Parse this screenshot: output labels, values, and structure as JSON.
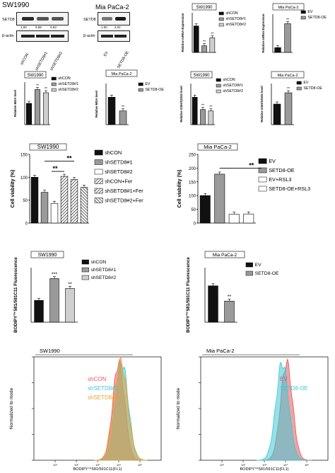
{
  "western": {
    "sw": {
      "title": "SW1990",
      "rows": [
        "SETD8",
        "β-actin"
      ],
      "values": [
        "1.00",
        "0.59",
        "0.63"
      ],
      "lanes": [
        "shCON",
        "shSETD8#1",
        "shSETD8#2"
      ]
    },
    "mia": {
      "title": "Mia PaCa-2",
      "rows": [
        "SETD8",
        "β-actin"
      ],
      "values": [
        "1.00",
        "2.01"
      ],
      "lanes": [
        "EV",
        "SETD8-OE"
      ]
    }
  },
  "colors": {
    "black": "#111111",
    "gray": "#9a9a9a",
    "light": "#cfcfcf",
    "white": "#ffffff",
    "flow_red": "#e8585a",
    "flow_cyan": "#3cc8d6",
    "flow_orange": "#e8a03a"
  },
  "chart_data": [
    {
      "id": "mrna_sw",
      "type": "bar",
      "title": "SW1990",
      "ylabel": "Relative mRNA Expression",
      "categories": [
        "shCON",
        "shSETD8#1",
        "shSETD8#2"
      ],
      "values": [
        1.0,
        0.25,
        0.55
      ],
      "ylim": [
        0,
        1.5
      ],
      "yticks": [],
      "sig": [
        "",
        "**",
        "**"
      ],
      "legend": [
        "shCON",
        "shSETD8#1",
        "shSETD8#2"
      ]
    },
    {
      "id": "mrna_mia",
      "type": "bar",
      "title": "Mia PaCa-2",
      "ylabel": "Relative mRNA Expression",
      "categories": [
        "EV",
        "SETD8-OE"
      ],
      "values": [
        1.0,
        6.0
      ],
      "ylim": [
        0,
        8
      ],
      "yticks": [],
      "sig": [
        "",
        "**"
      ],
      "legend": [
        "EV",
        "SETD8-OE"
      ]
    },
    {
      "id": "mda_sw",
      "type": "bar",
      "title": "SW1990",
      "ylabel": "Relative MDA level",
      "categories": [
        "shCON",
        "shSETD8#1",
        "shSETD8#2"
      ],
      "values": [
        1.0,
        1.65,
        1.5
      ],
      "ylim": [
        0,
        2.0
      ],
      "yticks": [],
      "sig": [
        "",
        "**",
        "**"
      ],
      "legend": [
        "shCON",
        "shSETD8#1",
        "shSETD8#2"
      ]
    },
    {
      "id": "mda_mia",
      "type": "bar",
      "title": "Mia PaCa-2",
      "ylabel": "Relative MDA level",
      "categories": [
        "EV",
        "SETD8-OE"
      ],
      "values": [
        1.0,
        0.5
      ],
      "ylim": [
        0,
        1.5
      ],
      "yticks": [],
      "sig": [
        "",
        "**"
      ],
      "legend": [
        "EV",
        "SETD8-OE"
      ]
    },
    {
      "id": "gsh_sw",
      "type": "bar",
      "title": "SW1990",
      "ylabel": "Relative GSH/GSSG level",
      "categories": [
        "shCON",
        "shSETD8#1",
        "shSETD8#2"
      ],
      "values": [
        1.0,
        0.55,
        0.5
      ],
      "ylim": [
        0,
        1.5
      ],
      "yticks": [],
      "sig": [
        "",
        "**",
        "**"
      ],
      "legend": [
        "shCON",
        "shSETD8#1",
        "shSETD8#2"
      ]
    },
    {
      "id": "gsh_mia",
      "type": "bar",
      "title": "Mia PaCa-2",
      "ylabel": "Relative GSH/GSSG level",
      "categories": [
        "EV",
        "SETD8-OE"
      ],
      "values": [
        1.0,
        1.55
      ],
      "ylim": [
        0,
        2.0
      ],
      "yticks": [],
      "sig": [
        "",
        "**"
      ],
      "legend": [
        "EV",
        "SETD8-OE"
      ]
    },
    {
      "id": "via_sw",
      "type": "bar",
      "title": "SW1990",
      "ylabel": "Cell viability (%)",
      "categories": [
        "shCON",
        "shSETD8#1",
        "shSETD8#2",
        "shCON+Fer",
        "shSETD8#1+Fer",
        "shSETD8#2+Fer"
      ],
      "values": [
        100,
        67,
        43,
        102,
        95,
        78
      ],
      "ylim": [
        0,
        150
      ],
      "yticks": [
        0,
        50,
        100,
        150
      ],
      "sig": [
        "",
        "",
        "",
        "",
        "",
        ""
      ],
      "brackets": [
        "**",
        "**"
      ],
      "legend": [
        "shCON",
        "shSETD8#1",
        "shSETD8#2",
        "shCON+Fer",
        "shSETD8#1+Fer",
        "shSETD8#2+Fer"
      ]
    },
    {
      "id": "via_mia",
      "type": "bar",
      "title": "Mia PaCa-2",
      "ylabel": "Cell viability (%)",
      "categories": [
        "EV",
        "SETD8-OE",
        "EV+RSL3",
        "SETD8-OE+RSL3"
      ],
      "values": [
        100,
        178,
        32,
        33
      ],
      "ylim": [
        0,
        250
      ],
      "yticks": [
        0,
        50,
        100,
        150,
        200,
        250
      ],
      "sig": [
        "",
        "",
        "",
        ""
      ],
      "brackets": [
        "**"
      ],
      "legend": [
        "EV",
        "SETD8-OE",
        "EV+RSL3",
        "SETD8-OE+RSL3"
      ]
    },
    {
      "id": "bod_sw",
      "type": "bar",
      "title": "SW1990",
      "ylabel": "BODIPY™581/591C11 Fluorescence",
      "categories": [
        "shCON",
        "shSETD8#1",
        "shSETD8#2"
      ],
      "values": [
        1.0,
        2.0,
        1.55
      ],
      "ylim": [
        0,
        2.5
      ],
      "yticks": [],
      "sig": [
        "",
        "***",
        "**"
      ],
      "legend": [
        "shCON",
        "shSETD8#1",
        "shSETD8#2"
      ]
    },
    {
      "id": "bod_mia",
      "type": "bar",
      "title": "Mia PaCa-2",
      "ylabel": "BODIPY™581/591C11 Fluorescence",
      "categories": [
        "EV",
        "SETD8-OE"
      ],
      "values": [
        1.0,
        0.58
      ],
      "ylim": [
        0,
        1.5
      ],
      "yticks": [],
      "sig": [
        "",
        "**"
      ],
      "legend": [
        "EV",
        "SETD8-OE"
      ]
    },
    {
      "id": "flow_sw",
      "type": "area",
      "title": "SW1990",
      "ylabel": "Normalized to mode",
      "xlabel": "BODIPY™581/591C11(FL1)",
      "series": [
        {
          "name": "shCON",
          "peak_log": 4.0
        },
        {
          "name": "shSETD8#1",
          "peak_log": 4.15
        },
        {
          "name": "shSETD8#2",
          "peak_log": 4.1
        }
      ]
    },
    {
      "id": "flow_mia",
      "type": "area",
      "title": "Mia PaCa-2",
      "ylabel": "Normalized to mode",
      "xlabel": "BODIPY™581/591C11(FL1)",
      "series": [
        {
          "name": "EV",
          "peak_log": 4.05
        },
        {
          "name": "SETD8-OE",
          "peak_log": 3.85
        }
      ]
    }
  ]
}
